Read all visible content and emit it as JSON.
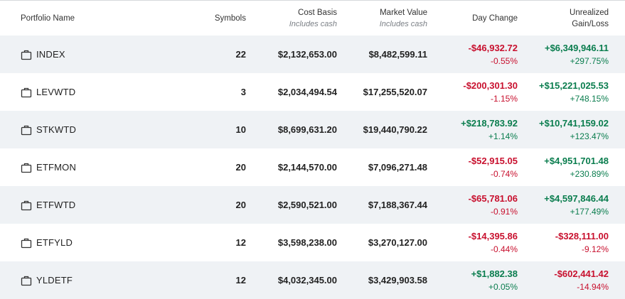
{
  "header": {
    "portfolio_name": "Portfolio Name",
    "symbols": "Symbols",
    "cost_basis": "Cost Basis",
    "cost_basis_sub": "Includes cash",
    "market_value": "Market Value",
    "market_value_sub": "Includes cash",
    "day_change": "Day Change",
    "unrealized_line1": "Unrealized",
    "unrealized_line2": "Gain/Loss"
  },
  "colors": {
    "negative": "#c8102e",
    "positive": "#0a7d4e",
    "alt_row": "#eff2f5"
  },
  "rows": [
    {
      "name": "INDEX",
      "symbols": "22",
      "cost_basis": "$2,132,653.00",
      "market_value": "$8,482,599.11",
      "day_change": "-$46,932.72",
      "day_change_pct": "-0.55%",
      "day_sign": "neg",
      "gain": "+$6,349,946.11",
      "gain_pct": "+297.75%",
      "gain_sign": "pos"
    },
    {
      "name": "LEVWTD",
      "symbols": "3",
      "cost_basis": "$2,034,494.54",
      "market_value": "$17,255,520.07",
      "day_change": "-$200,301.30",
      "day_change_pct": "-1.15%",
      "day_sign": "neg",
      "gain": "+$15,221,025.53",
      "gain_pct": "+748.15%",
      "gain_sign": "pos"
    },
    {
      "name": "STKWTD",
      "symbols": "10",
      "cost_basis": "$8,699,631.20",
      "market_value": "$19,440,790.22",
      "day_change": "+$218,783.92",
      "day_change_pct": "+1.14%",
      "day_sign": "pos",
      "gain": "+$10,741,159.02",
      "gain_pct": "+123.47%",
      "gain_sign": "pos"
    },
    {
      "name": "ETFMON",
      "symbols": "20",
      "cost_basis": "$2,144,570.00",
      "market_value": "$7,096,271.48",
      "day_change": "-$52,915.05",
      "day_change_pct": "-0.74%",
      "day_sign": "neg",
      "gain": "+$4,951,701.48",
      "gain_pct": "+230.89%",
      "gain_sign": "pos"
    },
    {
      "name": "ETFWTD",
      "symbols": "20",
      "cost_basis": "$2,590,521.00",
      "market_value": "$7,188,367.44",
      "day_change": "-$65,781.06",
      "day_change_pct": "-0.91%",
      "day_sign": "neg",
      "gain": "+$4,597,846.44",
      "gain_pct": "+177.49%",
      "gain_sign": "pos"
    },
    {
      "name": "ETFYLD",
      "symbols": "12",
      "cost_basis": "$3,598,238.00",
      "market_value": "$3,270,127.00",
      "day_change": "-$14,395.86",
      "day_change_pct": "-0.44%",
      "day_sign": "neg",
      "gain": "-$328,111.00",
      "gain_pct": "-9.12%",
      "gain_sign": "neg"
    },
    {
      "name": "YLDETF",
      "symbols": "12",
      "cost_basis": "$4,032,345.00",
      "market_value": "$3,429,903.58",
      "day_change": "+$1,882.38",
      "day_change_pct": "+0.05%",
      "day_sign": "pos",
      "gain": "-$602,441.42",
      "gain_pct": "-14.94%",
      "gain_sign": "neg"
    }
  ],
  "row_icon": "briefcase-icon"
}
